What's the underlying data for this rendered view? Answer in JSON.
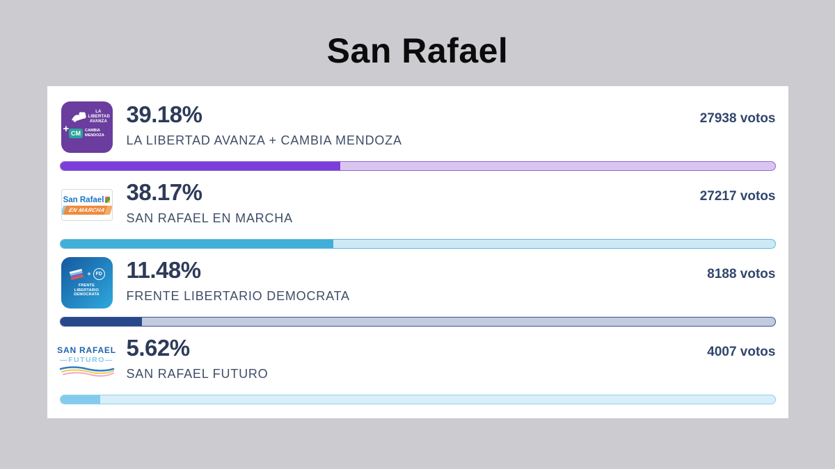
{
  "page": {
    "title": "San Rafael",
    "background_color": "#cbcbd0",
    "card_color": "#ffffff"
  },
  "chart_data": {
    "type": "bar",
    "orientation": "horizontal",
    "title": "San Rafael",
    "categories": [
      "LA LIBERTAD AVANZA + CAMBIA MENDOZA",
      "SAN RAFAEL EN MARCHA",
      "FRENTE LIBERTARIO DEMOCRATA",
      "SAN RAFAEL FUTURO"
    ],
    "series": [
      {
        "name": "Porcentaje (%)",
        "values": [
          39.18,
          38.17,
          11.48,
          5.62
        ]
      },
      {
        "name": "Votos",
        "values": [
          27938,
          27217,
          8188,
          4007
        ]
      }
    ],
    "xlim": [
      0,
      100
    ],
    "legend": false,
    "grid": false
  },
  "results": [
    {
      "percent": "39.18%",
      "percent_value": 39.18,
      "party": "LA LIBERTAD AVANZA + CAMBIA MENDOZA",
      "votes": "27938 votos",
      "colors": {
        "fill": "#7b3ed9",
        "track": "#d8c6f1",
        "border": "#9465d6"
      },
      "logo": {
        "plus": "+",
        "top_label": "LA LIBERTAD AVANZA",
        "badge": "CM",
        "badge_label": "CAMBIA MENDOZA"
      }
    },
    {
      "percent": "38.17%",
      "percent_value": 38.17,
      "party": "SAN RAFAEL EN MARCHA",
      "votes": "27217 votos",
      "colors": {
        "fill": "#41afd8",
        "track": "#cde9f5",
        "border": "#5cbade"
      },
      "logo": {
        "line1": "San Rafael",
        "banner": "EN MARCHA"
      }
    },
    {
      "percent": "11.48%",
      "percent_value": 11.48,
      "party": "FRENTE LIBERTARIO DEMOCRATA",
      "votes": "8188 votos",
      "colors": {
        "fill": "#28488c",
        "track": "#c2cbde",
        "border": "#3a5490"
      },
      "logo": {
        "flag_plus": "+",
        "emblem": "FD",
        "label": "FRENTE LIBERTARIO DEMOCRATA"
      }
    },
    {
      "percent": "5.62%",
      "percent_value": 5.62,
      "party": "SAN RAFAEL FUTURO",
      "votes": "4007 votos",
      "colors": {
        "fill": "#83cbec",
        "track": "#d9effa",
        "border": "#90d1ee"
      },
      "logo": {
        "line1": "SAN RAFAEL",
        "line2": "—FUTURO—"
      }
    }
  ]
}
